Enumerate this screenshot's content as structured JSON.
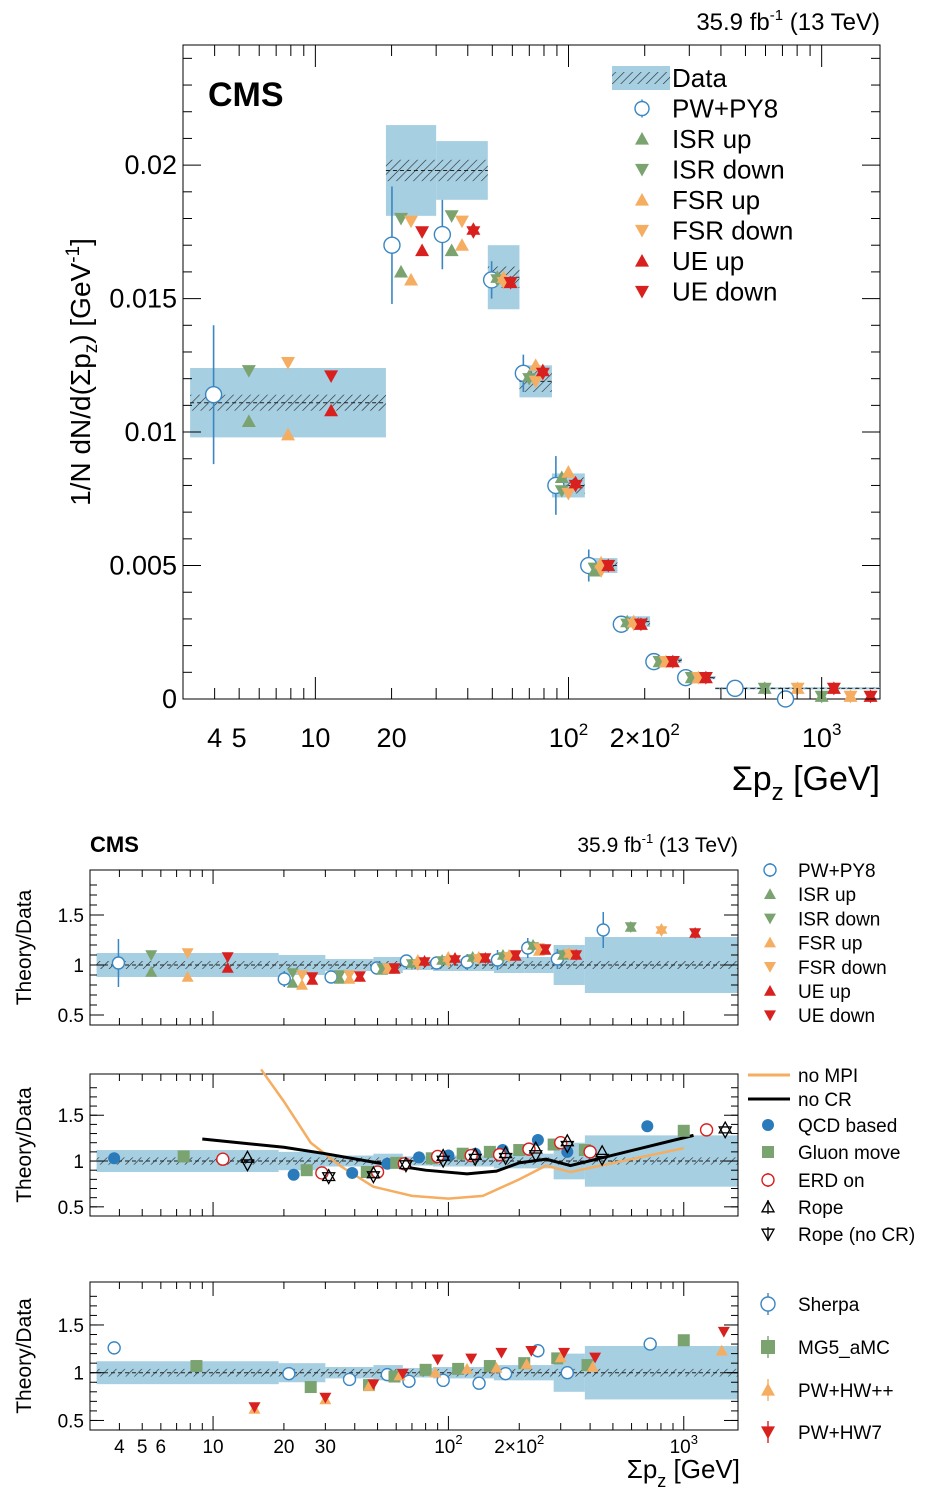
{
  "main": {
    "lumi": "35.9 fb",
    "lumi_sup": "-1",
    "lumi_energy": " (13 TeV)",
    "cms": "CMS",
    "ylabel": "1/N dN/d(Σp_z) [GeV^-1]",
    "xlabel": "Σp_z [GeV]",
    "yticks": [
      "0",
      "0.005",
      "0.01",
      "0.015",
      "0.02"
    ],
    "xticks": [
      "4",
      "5",
      "10",
      "20",
      "10^2",
      "2×10^2",
      "10^3"
    ]
  },
  "ratio": {
    "cms": "CMS",
    "lumi": "35.9 fb",
    "lumi_sup": "-1",
    "lumi_energy": " (13 TeV)",
    "ylabel": "Theory/Data",
    "xlabel": "Σp_z [GeV]",
    "yticks": [
      "0.5",
      "1",
      "1.5"
    ],
    "xticks": [
      "4",
      "5",
      "6",
      "10",
      "20",
      "30",
      "10^2",
      "2×10^2",
      "10^3"
    ]
  },
  "legends": {
    "main": [
      "Data",
      "PW+PY8",
      "ISR up",
      "ISR down",
      "FSR up",
      "FSR down",
      "UE up",
      "UE down"
    ],
    "panel1": [
      "PW+PY8",
      "ISR up",
      "ISR down",
      "FSR up",
      "FSR down",
      "UE up",
      "UE down"
    ],
    "panel2": [
      "no MPI",
      "no CR",
      "QCD based",
      "Gluon move",
      "ERD on",
      "Rope",
      "Rope (no CR)"
    ],
    "panel3": [
      "Sherpa",
      "MG5_aMC",
      "PW+HW++",
      "PW+HW7"
    ]
  },
  "colors": {
    "band": "#a6cfe2",
    "pwpy8": "#3a86c2",
    "isr": "#7ba370",
    "fsr": "#f5ad61",
    "ue": "#d8201f",
    "qcd": "#2b7bba",
    "gluon": "#7ba370",
    "erd": "#d8201f",
    "nompi": "#f5ad61",
    "nocr": "#000000",
    "sherpa": "#3a86c2",
    "mg5": "#7ba370",
    "hwpp": "#f5ad61",
    "hw7": "#d8201f"
  },
  "chart_data": [
    {
      "type": "scatter",
      "title": "",
      "xlabel": "Σp_z [GeV]",
      "ylabel": "1/N dN/d(Σp_z) [GeV^-1]",
      "xscale": "log",
      "xlim": [
        3,
        1700
      ],
      "ylim": [
        0,
        0.0245
      ],
      "bins": [
        3.2,
        19,
        30,
        48,
        64,
        86,
        116,
        156,
        210,
        280,
        380,
        1700
      ],
      "data": [
        0.0111,
        0.0198,
        0.0198,
        0.0158,
        0.0119,
        0.008,
        0.005,
        0.0029,
        0.00145,
        0.0008,
        0.0004
      ],
      "data_total_unc": [
        0.0013,
        0.0017,
        0.0011,
        0.0012,
        0.0006,
        0.00045,
        0.00028,
        0.0002,
        0.0001,
        6e-05,
        4e-05
      ],
      "data_stat_unc": [
        0.0003,
        0.0004,
        0.0004,
        0.0004,
        0.0004,
        0.0003,
        0.0002,
        0.00015,
        8e-05,
        5e-05,
        3e-05
      ],
      "series": [
        {
          "name": "PW+PY8",
          "values": [
            0.0114,
            0.017,
            0.0174,
            0.0157,
            0.0122,
            0.008,
            0.005,
            0.0028,
            0.0014,
            0.0008,
            0.0004
          ],
          "errors": [
            0.0026,
            0.0022,
            0.0013,
            0.0007,
            0.0007,
            0.0011,
            0.0006,
            0.0003,
            0.0001,
            5e-05,
            3e-05
          ],
          "last_bin_value": 0.0
        }
      ],
      "variations": [
        {
          "name": "ISR up",
          "values": [
            0.0104,
            0.016,
            0.0168,
            0.0158,
            0.0121,
            0.0083,
            0.0048,
            0.0029,
            0.0014,
            0.0008,
            0.0004
          ]
        },
        {
          "name": "ISR down",
          "values": [
            0.0123,
            0.018,
            0.0181,
            0.0157,
            0.012,
            0.0078,
            0.0049,
            0.0028,
            0.0014,
            0.0008,
            0.0004
          ]
        },
        {
          "name": "FSR up",
          "values": [
            0.0099,
            0.0157,
            0.017,
            0.0158,
            0.0125,
            0.0085,
            0.0051,
            0.0029,
            0.0014,
            0.0008,
            0.0004
          ]
        },
        {
          "name": "FSR down",
          "values": [
            0.0126,
            0.0179,
            0.0179,
            0.0156,
            0.0119,
            0.0077,
            0.0048,
            0.0028,
            0.0014,
            0.0008,
            0.0004
          ]
        },
        {
          "name": "UE up",
          "values": [
            0.0108,
            0.0168,
            0.0176,
            0.0156,
            0.0123,
            0.0081,
            0.005,
            0.0028,
            0.0014,
            0.0008,
            0.0004
          ]
        },
        {
          "name": "UE down",
          "values": [
            0.0121,
            0.0175,
            0.0175,
            0.0156,
            0.0122,
            0.008,
            0.005,
            0.0028,
            0.0014,
            0.0008,
            0.0004
          ]
        }
      ]
    },
    {
      "type": "scatter",
      "title": "",
      "xlabel": "",
      "ylabel": "Theory/Data",
      "xscale": "log",
      "xlim": [
        3,
        1700
      ],
      "ylim": [
        0.4,
        1.95
      ],
      "band": {
        "bins": [
          3.2,
          19,
          30,
          48,
          64,
          86,
          116,
          156,
          210,
          280,
          380,
          1700
        ],
        "halfwidth": [
          0.12,
          0.1,
          0.06,
          0.08,
          0.05,
          0.06,
          0.06,
          0.08,
          0.08,
          0.2,
          0.28
        ]
      },
      "series": [
        {
          "name": "PW+PY8",
          "values": [
            1.02,
            0.86,
            0.88,
            0.97,
            1.04,
            1.02,
            1.03,
            1.05,
            1.17,
            1.06,
            1.35
          ],
          "errors": [
            0.24,
            0.08,
            0.05,
            0.05,
            0.06,
            0.06,
            0.08,
            0.1,
            0.1,
            0.1,
            0.18
          ]
        },
        {
          "name": "ISR up",
          "values": [
            0.93,
            0.82,
            0.86,
            0.95,
            1.02,
            1.05,
            1.08,
            1.1,
            1.2,
            1.1,
            1.38
          ]
        },
        {
          "name": "ISR down",
          "values": [
            1.1,
            0.92,
            0.9,
            0.97,
            1.01,
            1.04,
            1.06,
            1.08,
            1.18,
            1.1,
            1.38
          ]
        },
        {
          "name": "FSR up",
          "values": [
            0.88,
            0.8,
            0.86,
            0.96,
            1.05,
            1.08,
            1.08,
            1.1,
            1.14,
            1.12,
            1.36
          ]
        },
        {
          "name": "FSR down",
          "values": [
            1.12,
            0.9,
            0.9,
            0.97,
            1.0,
            1.03,
            1.06,
            1.08,
            1.17,
            1.11,
            1.34
          ]
        },
        {
          "name": "UE up",
          "values": [
            0.97,
            0.85,
            0.88,
            0.96,
            1.04,
            1.07,
            1.07,
            1.09,
            1.15,
            1.1,
            1.32
          ]
        },
        {
          "name": "UE down",
          "values": [
            1.08,
            0.88,
            0.89,
            0.97,
            1.03,
            1.05,
            1.07,
            1.1,
            1.16,
            1.1,
            1.32
          ]
        }
      ]
    },
    {
      "type": "line",
      "title": "",
      "xlabel": "",
      "ylabel": "Theory/Data",
      "xscale": "log",
      "xlim": [
        3,
        1700
      ],
      "ylim": [
        0.4,
        1.95
      ],
      "series": [
        {
          "name": "no MPI",
          "x": [
            16,
            20,
            26,
            35,
            48,
            70,
            100,
            140,
            200,
            260,
            330,
            1000
          ],
          "values": [
            2.0,
            1.65,
            1.2,
            0.94,
            0.72,
            0.62,
            0.59,
            0.62,
            0.8,
            0.95,
            0.88,
            1.14
          ]
        },
        {
          "name": "no CR",
          "x": [
            9,
            20,
            30,
            50,
            80,
            120,
            160,
            200,
            260,
            330,
            1100
          ],
          "values": [
            1.24,
            1.15,
            1.08,
            0.98,
            0.9,
            0.86,
            0.89,
            0.98,
            1.02,
            0.95,
            1.28
          ]
        },
        {
          "name": "QCD based",
          "x": [
            3.8,
            22,
            39,
            55,
            75,
            100,
            130,
            170,
            240,
            320,
            700
          ],
          "values": [
            1.03,
            0.85,
            0.87,
            0.97,
            1.04,
            1.06,
            1.08,
            1.12,
            1.23,
            1.1,
            1.38
          ]
        },
        {
          "name": "Gluon move",
          "x": [
            7.5,
            25,
            45,
            60,
            85,
            115,
            150,
            200,
            280,
            380,
            1000
          ],
          "values": [
            1.05,
            0.9,
            0.88,
            0.98,
            1.03,
            1.08,
            1.1,
            1.12,
            1.18,
            1.12,
            1.33
          ]
        },
        {
          "name": "ERD on",
          "x": [
            11,
            29,
            50,
            65,
            90,
            125,
            165,
            220,
            300,
            400,
            1250
          ],
          "values": [
            1.02,
            0.87,
            0.88,
            0.97,
            1.05,
            1.06,
            1.07,
            1.13,
            1.2,
            1.1,
            1.34
          ]
        },
        {
          "name": "Rope",
          "x": [
            14,
            31,
            48,
            66,
            95,
            130,
            175,
            235,
            320,
            450,
            1500
          ],
          "values": [
            1.04,
            0.84,
            0.87,
            0.97,
            1.06,
            1.07,
            1.09,
            1.14,
            1.22,
            1.1,
            1.36
          ]
        },
        {
          "name": "Rope (no CR)",
          "x": [
            14,
            31,
            48,
            66,
            95,
            130,
            175,
            235,
            320,
            450,
            1500
          ],
          "values": [
            0.96,
            0.82,
            0.83,
            0.95,
            1.0,
            1.02,
            1.03,
            1.06,
            1.16,
            1.02,
            1.32
          ]
        }
      ]
    },
    {
      "type": "scatter",
      "title": "",
      "xlabel": "Σp_z [GeV]",
      "ylabel": "Theory/Data",
      "xscale": "log",
      "xlim": [
        3,
        1700
      ],
      "ylim": [
        0.4,
        1.95
      ],
      "series": [
        {
          "name": "Sherpa",
          "x": [
            3.8,
            21,
            38,
            55,
            68,
            95,
            135,
            175,
            240,
            320,
            720
          ],
          "values": [
            1.26,
            0.99,
            0.93,
            0.98,
            0.91,
            0.92,
            0.89,
            0.99,
            1.23,
            1.0,
            1.3
          ]
        },
        {
          "name": "MG5_aMC",
          "x": [
            8.5,
            26,
            46,
            59,
            80,
            110,
            150,
            210,
            290,
            390,
            1000
          ],
          "values": [
            1.07,
            0.85,
            0.87,
            0.96,
            1.03,
            1.04,
            1.07,
            1.1,
            1.15,
            1.08,
            1.34
          ]
        },
        {
          "name": "PW+HW++",
          "x": [
            15,
            30,
            46,
            62,
            88,
            120,
            160,
            215,
            300,
            410,
            1450
          ],
          "values": [
            0.62,
            0.72,
            0.86,
            0.97,
            1.0,
            1.04,
            1.05,
            1.09,
            1.16,
            1.06,
            1.23
          ]
        },
        {
          "name": "PW+HW7",
          "x": [
            15,
            30,
            48,
            64,
            90,
            125,
            168,
            225,
            310,
            420,
            1480
          ],
          "values": [
            0.64,
            0.74,
            0.88,
            0.99,
            1.14,
            1.15,
            1.21,
            1.23,
            1.21,
            1.16,
            1.43
          ]
        }
      ]
    }
  ]
}
